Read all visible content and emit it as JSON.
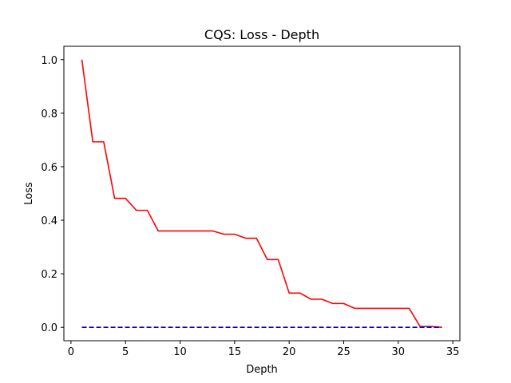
{
  "chart_data": {
    "type": "line",
    "title": "CQS: Loss - Depth",
    "xlabel": "Depth",
    "ylabel": "Loss",
    "xlim": [
      -0.65,
      35.65
    ],
    "ylim": [
      -0.05,
      1.05
    ],
    "xticks": [
      0,
      5,
      10,
      15,
      20,
      25,
      30,
      35
    ],
    "yticks": [
      0.0,
      0.2,
      0.4,
      0.6,
      0.8,
      1.0
    ],
    "xtick_labels": [
      "0",
      "5",
      "10",
      "15",
      "20",
      "25",
      "30",
      "35"
    ],
    "ytick_labels": [
      "0.0",
      "0.2",
      "0.4",
      "0.6",
      "0.8",
      "1.0"
    ],
    "grid": false,
    "legend": null,
    "series": [
      {
        "color": "#ff0000",
        "style": "solid",
        "x": [
          1,
          2,
          3,
          4,
          5,
          6,
          7,
          8,
          9,
          10,
          11,
          12,
          13,
          14,
          15,
          16,
          17,
          18,
          19,
          20,
          21,
          22,
          23,
          24,
          25,
          26,
          27,
          28,
          29,
          30,
          31,
          32,
          33,
          34
        ],
        "y": [
          1.0,
          0.693,
          0.693,
          0.482,
          0.482,
          0.437,
          0.437,
          0.36,
          0.36,
          0.36,
          0.36,
          0.36,
          0.36,
          0.348,
          0.348,
          0.333,
          0.333,
          0.253,
          0.253,
          0.128,
          0.128,
          0.105,
          0.105,
          0.089,
          0.089,
          0.071,
          0.071,
          0.071,
          0.071,
          0.071,
          0.071,
          0.003,
          0.003,
          0.0
        ]
      },
      {
        "color": "#0000cc",
        "style": "dashed",
        "x": [
          1,
          34
        ],
        "y": [
          0.0,
          0.0
        ]
      }
    ]
  }
}
